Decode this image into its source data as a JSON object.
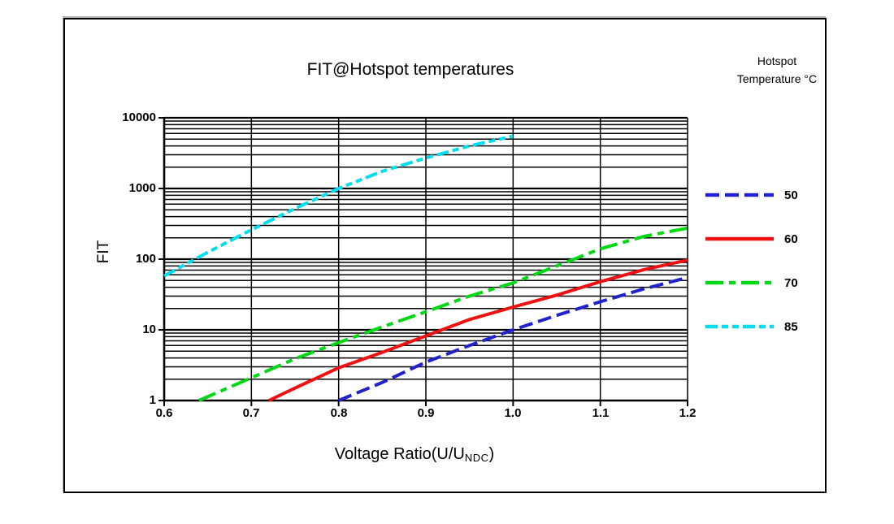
{
  "chart_data": {
    "type": "line",
    "title": "FIT@Hotspot temperatures",
    "ylabel": "FIT",
    "xlabel": "Voltage Ratio(U/UNDC)",
    "xlabel_parts": {
      "main": "Voltage Ratio(U/U",
      "sub": "NDC",
      "end": ")"
    },
    "x_ticks": [
      "0.6",
      "0.7",
      "0.8",
      "0.9",
      "1.0",
      "1.1",
      "1.2"
    ],
    "y_ticks": [
      "10000",
      "1000",
      "100",
      "10",
      "1"
    ],
    "xlim": [
      0.6,
      1.2
    ],
    "ylim": [
      1,
      10000
    ],
    "y_scale": "log",
    "grid": "full black grid, log minor lines on y, verticals every 0.1",
    "legend_position": "right",
    "legend_title": [
      "Hotspot",
      "Temperature °C"
    ],
    "grid_color": "#000000",
    "series": [
      {
        "name": "50",
        "color": "#2222cc",
        "dash": "17 7",
        "points": [
          [
            0.8,
            1.0
          ],
          [
            0.85,
            1.8
          ],
          [
            0.9,
            3.5
          ],
          [
            0.95,
            6.0
          ],
          [
            1.0,
            10
          ],
          [
            1.05,
            16
          ],
          [
            1.1,
            25
          ],
          [
            1.15,
            38
          ],
          [
            1.2,
            55
          ]
        ]
      },
      {
        "name": "60",
        "color": "#ee1111",
        "dash": "",
        "points": [
          [
            0.72,
            1.0
          ],
          [
            0.75,
            1.5
          ],
          [
            0.8,
            2.9
          ],
          [
            0.85,
            4.8
          ],
          [
            0.9,
            8.2
          ],
          [
            0.95,
            14
          ],
          [
            1.0,
            21
          ],
          [
            1.05,
            31
          ],
          [
            1.1,
            48
          ],
          [
            1.15,
            71
          ],
          [
            1.2,
            97
          ]
        ]
      },
      {
        "name": "70",
        "color": "#00d816",
        "dash": "22 7 8 7",
        "points": [
          [
            0.64,
            1.0
          ],
          [
            0.7,
            2.1
          ],
          [
            0.75,
            3.9
          ],
          [
            0.8,
            6.6
          ],
          [
            0.85,
            11
          ],
          [
            0.9,
            18
          ],
          [
            0.95,
            30
          ],
          [
            1.0,
            46
          ],
          [
            1.05,
            80
          ],
          [
            1.1,
            140
          ],
          [
            1.15,
            210
          ],
          [
            1.2,
            275
          ]
        ]
      },
      {
        "name": "85",
        "color": "#00ddee",
        "dash": "15 5 8 5 8 5",
        "points": [
          [
            0.6,
            58
          ],
          [
            0.65,
            125
          ],
          [
            0.7,
            260
          ],
          [
            0.75,
            520
          ],
          [
            0.8,
            1000
          ],
          [
            0.85,
            1750
          ],
          [
            0.9,
            2700
          ],
          [
            0.95,
            4000
          ],
          [
            1.0,
            5500
          ]
        ]
      }
    ]
  }
}
